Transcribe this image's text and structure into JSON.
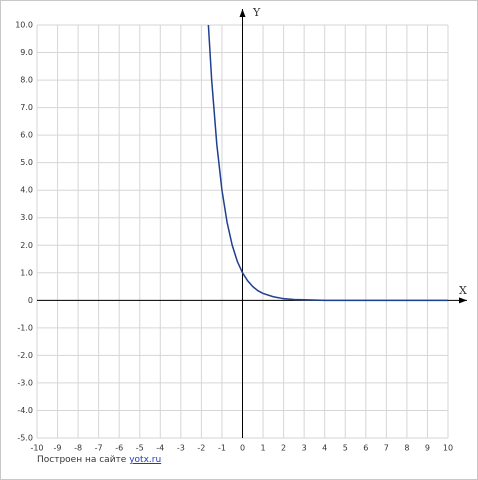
{
  "chart_data": {
    "type": "line",
    "x": [
      -1.66,
      -1.5,
      -1.25,
      -1,
      -0.75,
      -0.5,
      -0.25,
      0,
      0.25,
      0.5,
      0.75,
      1,
      1.5,
      2,
      2.5,
      3,
      4,
      6,
      10
    ],
    "series": [
      {
        "color": "#1f3f8f",
        "values": [
          10,
          8,
          5.66,
          4,
          2.83,
          2,
          1.41,
          1,
          0.71,
          0.5,
          0.35,
          0.25,
          0.13,
          0.06,
          0.03,
          0.02,
          0,
          0,
          0
        ]
      }
    ],
    "xlim": [
      -10,
      10
    ],
    "ylim": [
      -5,
      10
    ],
    "xticks": [
      -10,
      -9,
      -8,
      -7,
      -6,
      -5,
      -4,
      -3,
      -2,
      -1,
      0,
      1,
      2,
      3,
      4,
      5,
      6,
      7,
      8,
      9,
      10
    ],
    "yticks": [
      {
        "value": 10,
        "label": "10.0"
      },
      {
        "value": 9,
        "label": "9.0"
      },
      {
        "value": 8,
        "label": "8.0"
      },
      {
        "value": 7,
        "label": "7.0"
      },
      {
        "value": 6,
        "label": "6.0"
      },
      {
        "value": 5,
        "label": "5.0"
      },
      {
        "value": 4,
        "label": "4.0"
      },
      {
        "value": 3,
        "label": "3.0"
      },
      {
        "value": 2,
        "label": "2.0"
      },
      {
        "value": 1,
        "label": "1.0"
      },
      0,
      {
        "value": -1,
        "label": "-1.0"
      },
      {
        "value": -2,
        "label": "-2.0"
      },
      {
        "value": -3,
        "label": "-3.0"
      },
      {
        "value": -4,
        "label": "-4.0"
      },
      {
        "value": -5,
        "label": "-5.0"
      }
    ],
    "xlabel": "X",
    "ylabel": "Y",
    "grid": true
  },
  "footer": {
    "text": "Построен на сайте",
    "link": "yotx.ru"
  }
}
